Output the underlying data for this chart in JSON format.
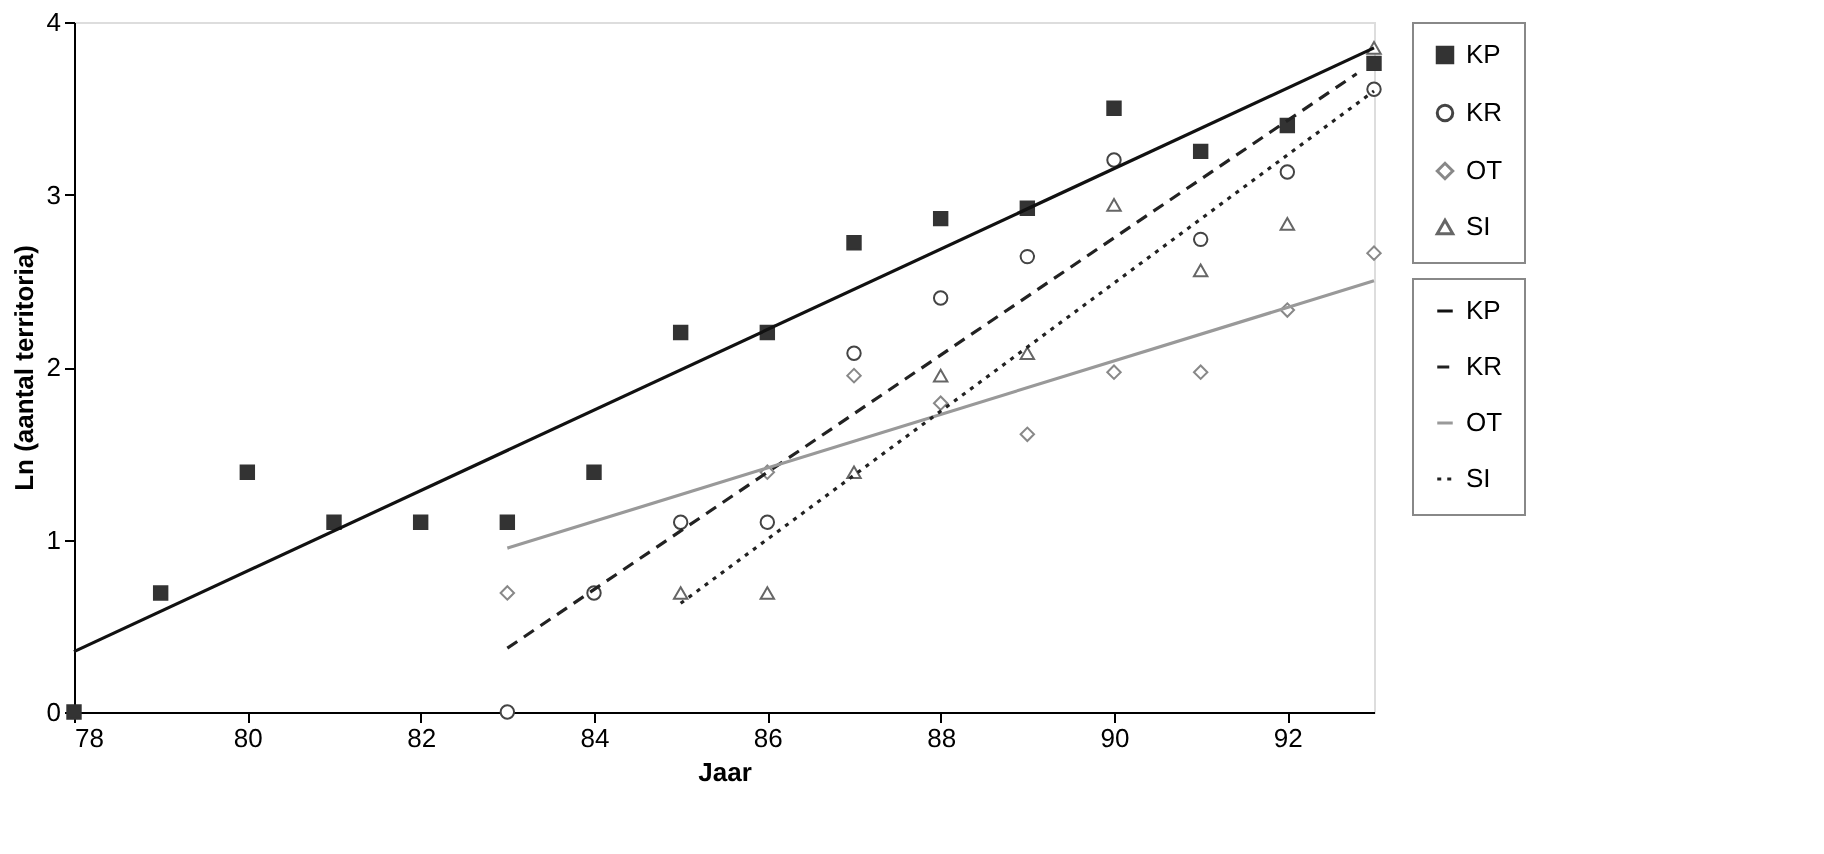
{
  "chart_data": {
    "type": "scatter",
    "xlabel": "Jaar",
    "ylabel": "Ln (aantal territoria)",
    "xlim": [
      78,
      93
    ],
    "ylim": [
      0,
      4
    ],
    "xticks": [
      78,
      80,
      82,
      84,
      86,
      88,
      90,
      92
    ],
    "yticks": [
      0,
      1,
      2,
      3,
      4
    ],
    "grid": false,
    "legend": "right",
    "series": [
      {
        "name": "KP",
        "type": "scatter",
        "marker": "square",
        "color": "#333333",
        "x": [
          78,
          79,
          80,
          81,
          82,
          83,
          84,
          85,
          86,
          87,
          88,
          89,
          90,
          91,
          92,
          93
        ],
        "values": [
          0,
          0.69,
          1.39,
          1.1,
          1.1,
          1.1,
          1.39,
          2.2,
          2.2,
          2.72,
          2.86,
          2.92,
          3.5,
          3.25,
          3.4,
          3.76
        ]
      },
      {
        "name": "KR",
        "type": "scatter",
        "marker": "circle",
        "color": "#444444",
        "x": [
          83,
          84,
          85,
          86,
          87,
          88,
          89,
          90,
          91,
          92,
          93
        ],
        "values": [
          0,
          0.69,
          1.1,
          1.1,
          2.08,
          2.4,
          2.64,
          3.2,
          2.74,
          3.13,
          3.61
        ]
      },
      {
        "name": "OT",
        "type": "scatter",
        "marker": "diamond",
        "color": "#888888",
        "x": [
          83,
          86,
          87,
          88,
          89,
          90,
          91,
          92,
          93
        ],
        "values": [
          0.69,
          1.39,
          1.95,
          1.79,
          1.61,
          1.97,
          1.97,
          2.33,
          2.66
        ]
      },
      {
        "name": "SI",
        "type": "scatter",
        "marker": "triangle",
        "color": "#666666",
        "x": [
          85,
          86,
          87,
          88,
          89,
          90,
          91,
          92,
          93
        ],
        "values": [
          0.69,
          0.69,
          1.39,
          1.95,
          2.08,
          2.94,
          2.56,
          2.83,
          3.85
        ]
      },
      {
        "name": "KP",
        "type": "line",
        "line_style": "solid",
        "color": "#111111",
        "x": [
          78,
          93
        ],
        "values": [
          0.35,
          3.85
        ]
      },
      {
        "name": "KR",
        "type": "line",
        "line_style": "dashed",
        "color": "#222222",
        "x": [
          83,
          92.8
        ],
        "values": [
          0.37,
          3.7
        ]
      },
      {
        "name": "OT",
        "type": "line",
        "line_style": "solid",
        "color": "#999999",
        "x": [
          83,
          93
        ],
        "values": [
          0.95,
          2.5
        ]
      },
      {
        "name": "SI",
        "type": "line",
        "line_style": "dotted",
        "color": "#222222",
        "x": [
          85,
          93
        ],
        "values": [
          0.63,
          3.6
        ]
      }
    ]
  }
}
